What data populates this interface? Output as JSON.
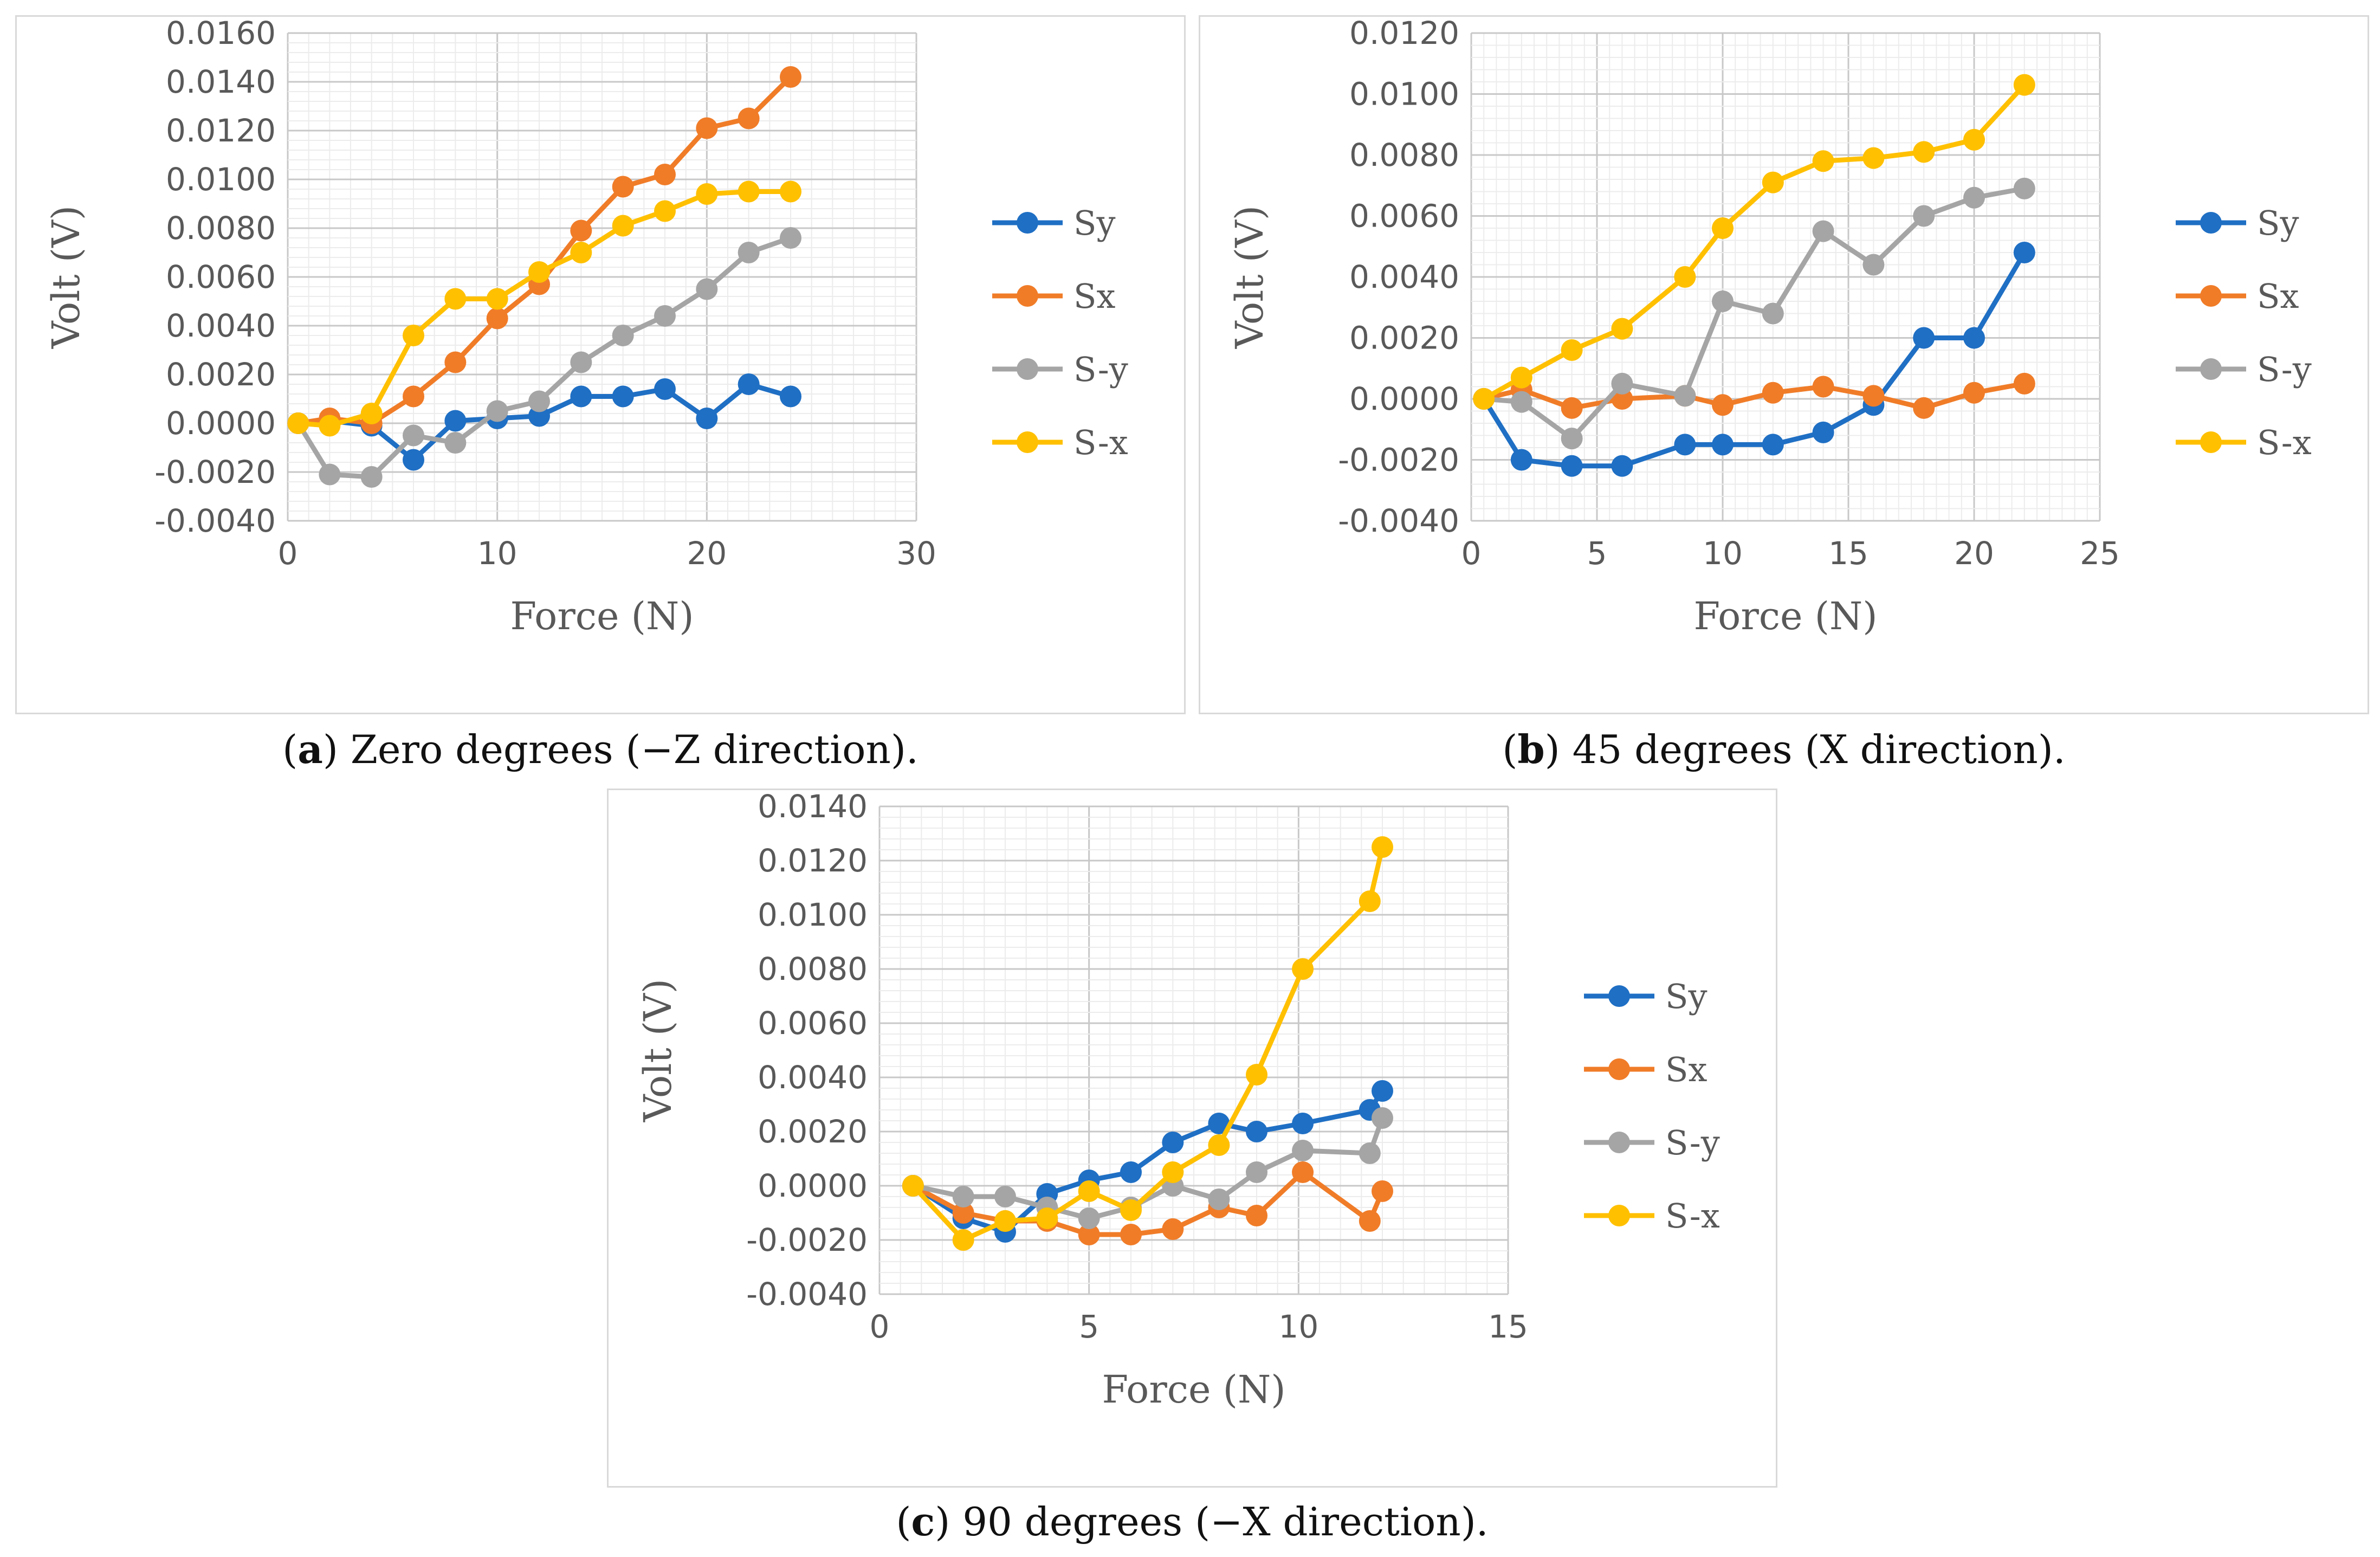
{
  "chart_data": [
    {
      "id": "a",
      "type": "line",
      "caption_letter": "a",
      "caption_text": ") Zero degrees (−Z direction).",
      "caption_open": "(",
      "xlabel": "Force (N)",
      "ylabel": "Volt (V)",
      "xlim": [
        0,
        30
      ],
      "ylim": [
        -0.004,
        0.016
      ],
      "xticks": [
        0,
        10,
        20,
        30
      ],
      "yticks": [
        -0.004,
        -0.002,
        0.0,
        0.002,
        0.004,
        0.006,
        0.008,
        0.01,
        0.012,
        0.014,
        0.016
      ],
      "yticklabels": [
        "-0.0040",
        "-0.0020",
        "0.0000",
        "0.0020",
        "0.0040",
        "0.0060",
        "0.0080",
        "0.0100",
        "0.0120",
        "0.0140",
        "0.0160"
      ],
      "xticklabels": [
        "0",
        "10",
        "20",
        "30"
      ],
      "minor_gridlines": true,
      "legend_position": "right",
      "series": [
        {
          "name": "Sy",
          "color": "#1f6fc4",
          "x": [
            0.5,
            2,
            4,
            6,
            8,
            10,
            12,
            14,
            16,
            18,
            20,
            22,
            24
          ],
          "y": [
            0.0,
            0.0001,
            -0.0001,
            -0.0015,
            0.0001,
            0.0002,
            0.0003,
            0.0011,
            0.0011,
            0.0014,
            0.0002,
            0.0016,
            0.0011
          ]
        },
        {
          "name": "Sx",
          "color": "#f07c28",
          "x": [
            0.5,
            2,
            4,
            6,
            8,
            10,
            12,
            14,
            16,
            18,
            20,
            22,
            24
          ],
          "y": [
            0.0,
            0.0002,
            0.0,
            0.0011,
            0.0025,
            0.0043,
            0.0057,
            0.0079,
            0.0097,
            0.0102,
            0.0121,
            0.0125,
            0.0142
          ]
        },
        {
          "name": "S-y",
          "color": "#a5a5a5",
          "x": [
            0.5,
            2,
            4,
            6,
            8,
            10,
            12,
            14,
            16,
            18,
            20,
            22,
            24
          ],
          "y": [
            0.0,
            -0.0021,
            -0.0022,
            -0.0005,
            -0.0008,
            0.0005,
            0.0009,
            0.0025,
            0.0036,
            0.0044,
            0.0055,
            0.007,
            0.0076
          ]
        },
        {
          "name": "S-x",
          "color": "#ffc000",
          "x": [
            0.5,
            2,
            4,
            6,
            8,
            10,
            12,
            14,
            16,
            18,
            20,
            22,
            24
          ],
          "y": [
            0.0,
            -0.0001,
            0.0004,
            0.0036,
            0.0051,
            0.0051,
            0.0062,
            0.007,
            0.0081,
            0.0087,
            0.0094,
            0.0095,
            0.0095
          ]
        }
      ]
    },
    {
      "id": "b",
      "type": "line",
      "caption_letter": "b",
      "caption_text": ") 45 degrees (X direction).",
      "caption_open": "(",
      "xlabel": "Force (N)",
      "ylabel": "Volt (V)",
      "xlim": [
        0,
        25
      ],
      "ylim": [
        -0.004,
        0.012
      ],
      "xticks": [
        0,
        5,
        10,
        15,
        20,
        25
      ],
      "yticks": [
        -0.004,
        -0.002,
        0.0,
        0.002,
        0.004,
        0.006,
        0.008,
        0.01,
        0.012
      ],
      "yticklabels": [
        "-0.0040",
        "-0.0020",
        "0.0000",
        "0.0020",
        "0.0040",
        "0.0060",
        "0.0080",
        "0.0100",
        "0.0120"
      ],
      "xticklabels": [
        "0",
        "5",
        "10",
        "15",
        "20",
        "25"
      ],
      "minor_gridlines": true,
      "legend_position": "right",
      "series": [
        {
          "name": "Sy",
          "color": "#1f6fc4",
          "x": [
            0.5,
            2,
            4,
            6,
            8.5,
            10,
            12,
            14,
            16,
            18,
            20,
            22
          ],
          "y": [
            0.0,
            -0.002,
            -0.0022,
            -0.0022,
            -0.0015,
            -0.0015,
            -0.0015,
            -0.0011,
            -0.0002,
            0.002,
            0.002,
            0.0048
          ]
        },
        {
          "name": "Sx",
          "color": "#f07c28",
          "x": [
            0.5,
            2,
            4,
            6,
            8.5,
            10,
            12,
            14,
            16,
            18,
            20,
            22
          ],
          "y": [
            0.0,
            0.0003,
            -0.0003,
            0.0,
            0.0001,
            -0.0002,
            0.0002,
            0.0004,
            0.0001,
            -0.0003,
            0.0002,
            0.0005
          ]
        },
        {
          "name": "S-y",
          "color": "#a5a5a5",
          "x": [
            0.5,
            2,
            4,
            6,
            8.5,
            10,
            12,
            14,
            16,
            18,
            20,
            22
          ],
          "y": [
            0.0,
            -0.0001,
            -0.0013,
            0.0005,
            0.0001,
            0.0032,
            0.0028,
            0.0055,
            0.0044,
            0.006,
            0.0066,
            0.0069
          ]
        },
        {
          "name": "S-x",
          "color": "#ffc000",
          "x": [
            0.5,
            2,
            4,
            6,
            8.5,
            10,
            12,
            14,
            16,
            18,
            20,
            22
          ],
          "y": [
            0.0,
            0.0007,
            0.0016,
            0.0023,
            0.004,
            0.0056,
            0.0071,
            0.0078,
            0.0079,
            0.0081,
            0.0085,
            0.0103
          ]
        }
      ]
    },
    {
      "id": "c",
      "type": "line",
      "caption_letter": "c",
      "caption_text": ") 90 degrees (−X direction).",
      "caption_open": "(",
      "xlabel": "Force (N)",
      "ylabel": "Volt (V)",
      "xlim": [
        0,
        15
      ],
      "ylim": [
        -0.004,
        0.014
      ],
      "xticks": [
        0,
        5,
        10,
        15
      ],
      "yticks": [
        -0.004,
        -0.002,
        0.0,
        0.002,
        0.004,
        0.006,
        0.008,
        0.01,
        0.012,
        0.014
      ],
      "yticklabels": [
        "-0.0040",
        "-0.0020",
        "0.0000",
        "0.0020",
        "0.0040",
        "0.0060",
        "0.0080",
        "0.0100",
        "0.0120",
        "0.0140"
      ],
      "xticklabels": [
        "0",
        "5",
        "10",
        "15"
      ],
      "minor_gridlines": true,
      "legend_position": "right",
      "series": [
        {
          "name": "Sy",
          "color": "#1f6fc4",
          "x": [
            0.8,
            2,
            3,
            4,
            5,
            6,
            7,
            8.1,
            9,
            10.1,
            11.7,
            12
          ],
          "y": [
            0.0,
            -0.0012,
            -0.0017,
            -0.0003,
            0.0002,
            0.0005,
            0.0016,
            0.0023,
            0.002,
            0.0023,
            0.0028,
            0.0035
          ]
        },
        {
          "name": "Sx",
          "color": "#f07c28",
          "x": [
            0.8,
            2,
            3,
            4,
            5,
            6,
            7,
            8.1,
            9,
            10.1,
            11.7,
            12
          ],
          "y": [
            0.0,
            -0.001,
            -0.0013,
            -0.0013,
            -0.0018,
            -0.0018,
            -0.0016,
            -0.0008,
            -0.0011,
            0.0005,
            -0.0013,
            -0.0002
          ]
        },
        {
          "name": "S-y",
          "color": "#a5a5a5",
          "x": [
            0.8,
            2,
            3,
            4,
            5,
            6,
            7,
            8.1,
            9,
            10.1,
            11.7,
            12
          ],
          "y": [
            0.0,
            -0.0004,
            -0.0004,
            -0.0008,
            -0.0012,
            -0.0008,
            0.0,
            -0.0005,
            0.0005,
            0.0013,
            0.0012,
            0.0025
          ]
        },
        {
          "name": "S-x",
          "color": "#ffc000",
          "x": [
            0.8,
            2,
            3,
            4,
            5,
            6,
            7,
            8.1,
            9,
            10.1,
            11.7,
            12
          ],
          "y": [
            0.0,
            -0.002,
            -0.0013,
            -0.0012,
            -0.0002,
            -0.0009,
            0.0005,
            0.0015,
            0.0041,
            0.008,
            0.0105,
            0.0125
          ]
        }
      ]
    }
  ]
}
